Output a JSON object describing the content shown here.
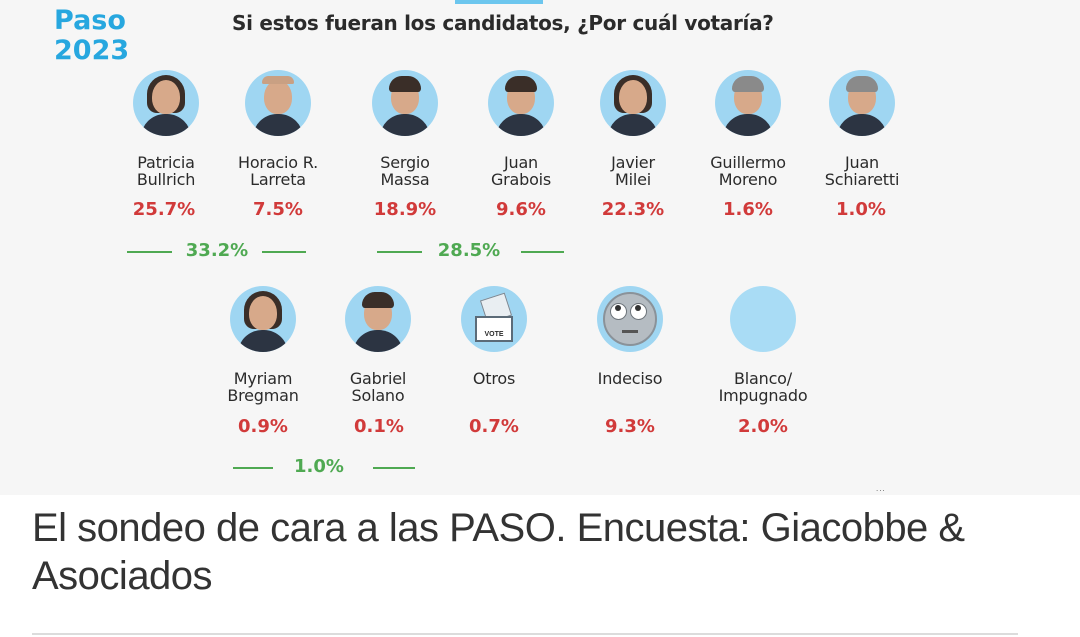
{
  "infographic": {
    "badge_line1": "Paso",
    "badge_line2": "2023",
    "question": "Si estos fueran los candidatos, ¿Por cuál votaría?",
    "source_note": "..."
  },
  "chart_data": {
    "type": "table",
    "title": "Si estos fueran los candidatos, ¿Por cuál votaría?",
    "categories": [
      "Patricia\nBullrich",
      "Horacio R.\nLarreta",
      "Sergio\nMassa",
      "Juan\nGrabois",
      "Javier\nMilei",
      "Guillermo\nMoreno",
      "Juan\nSchiaretti",
      "Myriam\nBregman",
      "Gabriel\nSolano",
      "Otros",
      "Indeciso",
      "Blanco/\nImpugnado"
    ],
    "values": [
      "25.7%",
      "7.5%",
      "18.9%",
      "9.6%",
      "22.3%",
      "1.6%",
      "1.0%",
      "0.9%",
      "0.1%",
      "0.7%",
      "9.3%",
      "2.0%"
    ],
    "values_numeric": [
      25.7,
      7.5,
      18.9,
      9.6,
      22.3,
      1.6,
      1.0,
      0.9,
      0.1,
      0.7,
      9.3,
      2.0
    ],
    "coalition_totals": [
      {
        "members": [
          "Patricia Bullrich",
          "Horacio R. Larreta"
        ],
        "value": "33.2%"
      },
      {
        "members": [
          "Sergio Massa",
          "Juan Grabois"
        ],
        "value": "28.5%"
      },
      {
        "members": [
          "Myriam Bregman",
          "Gabriel Solano"
        ],
        "value": "1.0%"
      }
    ]
  },
  "caption": "El sondeo de cara a las PASO. Encuesta: Giacobbe & Asociados",
  "colors": {
    "accent": "#27a7df",
    "percent": "#d13a3a",
    "total": "#4fa952",
    "avatar_bg": "#9fd6f2"
  }
}
